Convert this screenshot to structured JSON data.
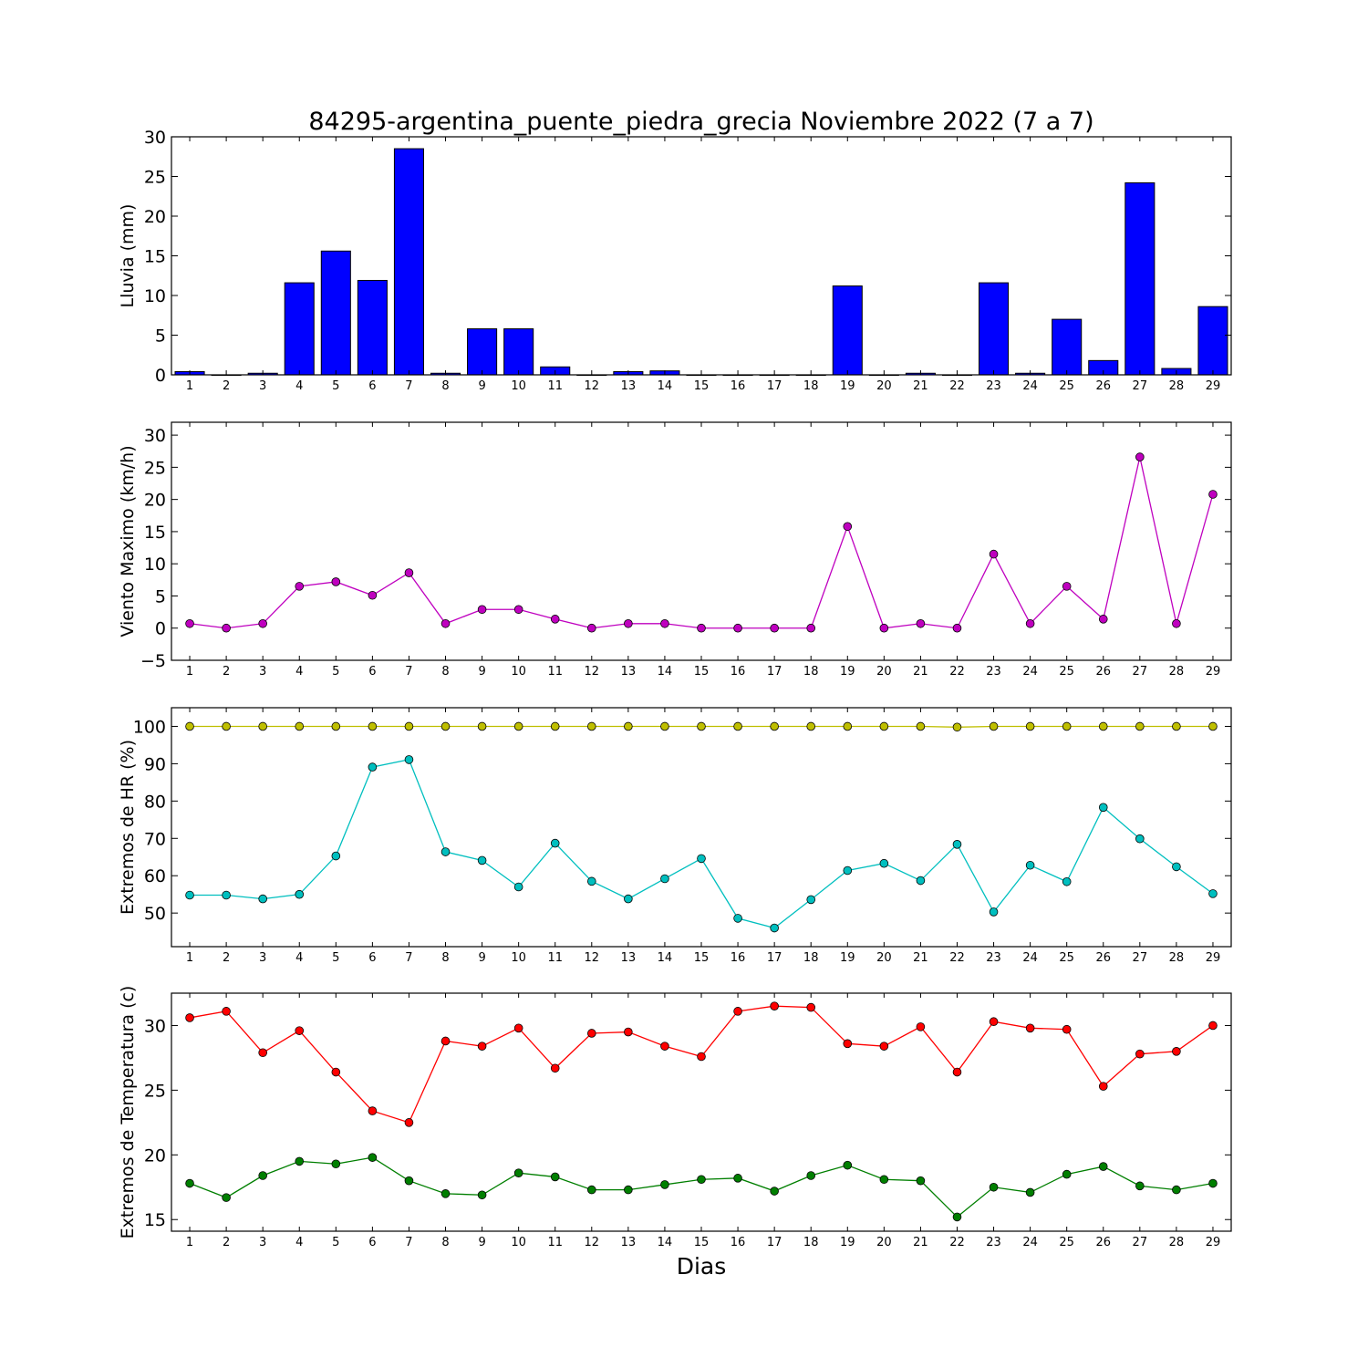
{
  "chart_data": {
    "title": "84295-argentina_puente_piedra_grecia Noviembre 2022  (7 a 7)",
    "xlabel": "Dias",
    "days": [
      1,
      2,
      3,
      4,
      5,
      6,
      7,
      8,
      9,
      10,
      11,
      12,
      13,
      14,
      15,
      16,
      17,
      18,
      19,
      20,
      21,
      22,
      23,
      24,
      25,
      26,
      27,
      28,
      29
    ],
    "panels": [
      {
        "id": "lluvia",
        "type": "bar",
        "ylabel": "Lluvia (mm)",
        "ylim": [
          0,
          30
        ],
        "yticks": [
          0,
          5,
          10,
          15,
          20,
          25,
          30
        ],
        "series": [
          {
            "color": "#0000ff",
            "values": [
              0.4,
              0,
              0.2,
              11.6,
              15.6,
              11.9,
              28.5,
              0.2,
              5.8,
              5.8,
              1.0,
              0,
              0.4,
              0.5,
              0,
              0,
              0,
              0,
              11.2,
              0,
              0.2,
              0,
              11.6,
              0.2,
              7.0,
              1.8,
              24.2,
              0.8,
              8.6
            ]
          }
        ]
      },
      {
        "id": "viento",
        "type": "line",
        "ylabel": "Viento Maximo (km/h)",
        "ylim": [
          -5,
          32
        ],
        "yticks": [
          -5,
          0,
          5,
          10,
          15,
          20,
          25,
          30
        ],
        "series": [
          {
            "color": "#bf00bf",
            "values": [
              0.7,
              0,
              0.7,
              6.5,
              7.2,
              5.1,
              8.6,
              0.7,
              2.9,
              2.9,
              1.4,
              0,
              0.7,
              0.7,
              0,
              0,
              0,
              0,
              15.8,
              0,
              0.7,
              0,
              11.5,
              0.7,
              6.5,
              1.4,
              26.6,
              0.7,
              20.8
            ]
          }
        ]
      },
      {
        "id": "hr",
        "type": "line",
        "ylabel": "Extremos de HR (%)",
        "ylim": [
          41,
          105
        ],
        "yticks": [
          50,
          60,
          70,
          80,
          90,
          100
        ],
        "series": [
          {
            "color": "#bfbf00",
            "values": [
              100,
              100,
              100,
              100,
              100,
              100,
              100,
              100,
              100,
              100,
              100,
              100,
              100,
              100,
              100,
              100,
              100,
              100,
              100,
              100,
              100,
              99.8,
              100,
              100,
              100,
              100,
              100,
              100,
              100
            ]
          },
          {
            "color": "#00bfbf",
            "values": [
              54.8,
              54.8,
              53.8,
              55.0,
              65.3,
              89.1,
              91.1,
              66.4,
              64.1,
              57.0,
              68.7,
              58.5,
              53.8,
              59.2,
              64.6,
              48.6,
              46.0,
              53.6,
              61.4,
              63.3,
              58.7,
              68.4,
              50.3,
              62.8,
              58.4,
              78.3,
              69.9,
              62.4,
              55.2
            ]
          }
        ]
      },
      {
        "id": "temperatura",
        "type": "line",
        "ylabel": "Extremos de Temperatura (c)",
        "ylim": [
          14.1,
          32.5
        ],
        "yticks": [
          15,
          20,
          25,
          30
        ],
        "series": [
          {
            "color": "#ff0000",
            "values": [
              30.6,
              31.1,
              27.9,
              29.6,
              26.4,
              23.4,
              22.5,
              28.8,
              28.4,
              29.8,
              26.7,
              29.4,
              29.5,
              28.4,
              27.6,
              31.1,
              31.5,
              31.4,
              28.6,
              28.4,
              29.9,
              26.4,
              30.3,
              29.8,
              29.7,
              25.3,
              27.8,
              28.0,
              30.0
            ]
          },
          {
            "color": "#007f00",
            "values": [
              17.8,
              16.7,
              18.4,
              19.5,
              19.3,
              19.8,
              18.0,
              17.0,
              16.9,
              18.6,
              18.3,
              17.3,
              17.3,
              17.7,
              18.1,
              18.2,
              17.2,
              18.4,
              19.2,
              18.1,
              18.0,
              15.2,
              17.5,
              17.1,
              18.5,
              19.1,
              17.6,
              17.3,
              17.8
            ]
          }
        ]
      }
    ]
  }
}
